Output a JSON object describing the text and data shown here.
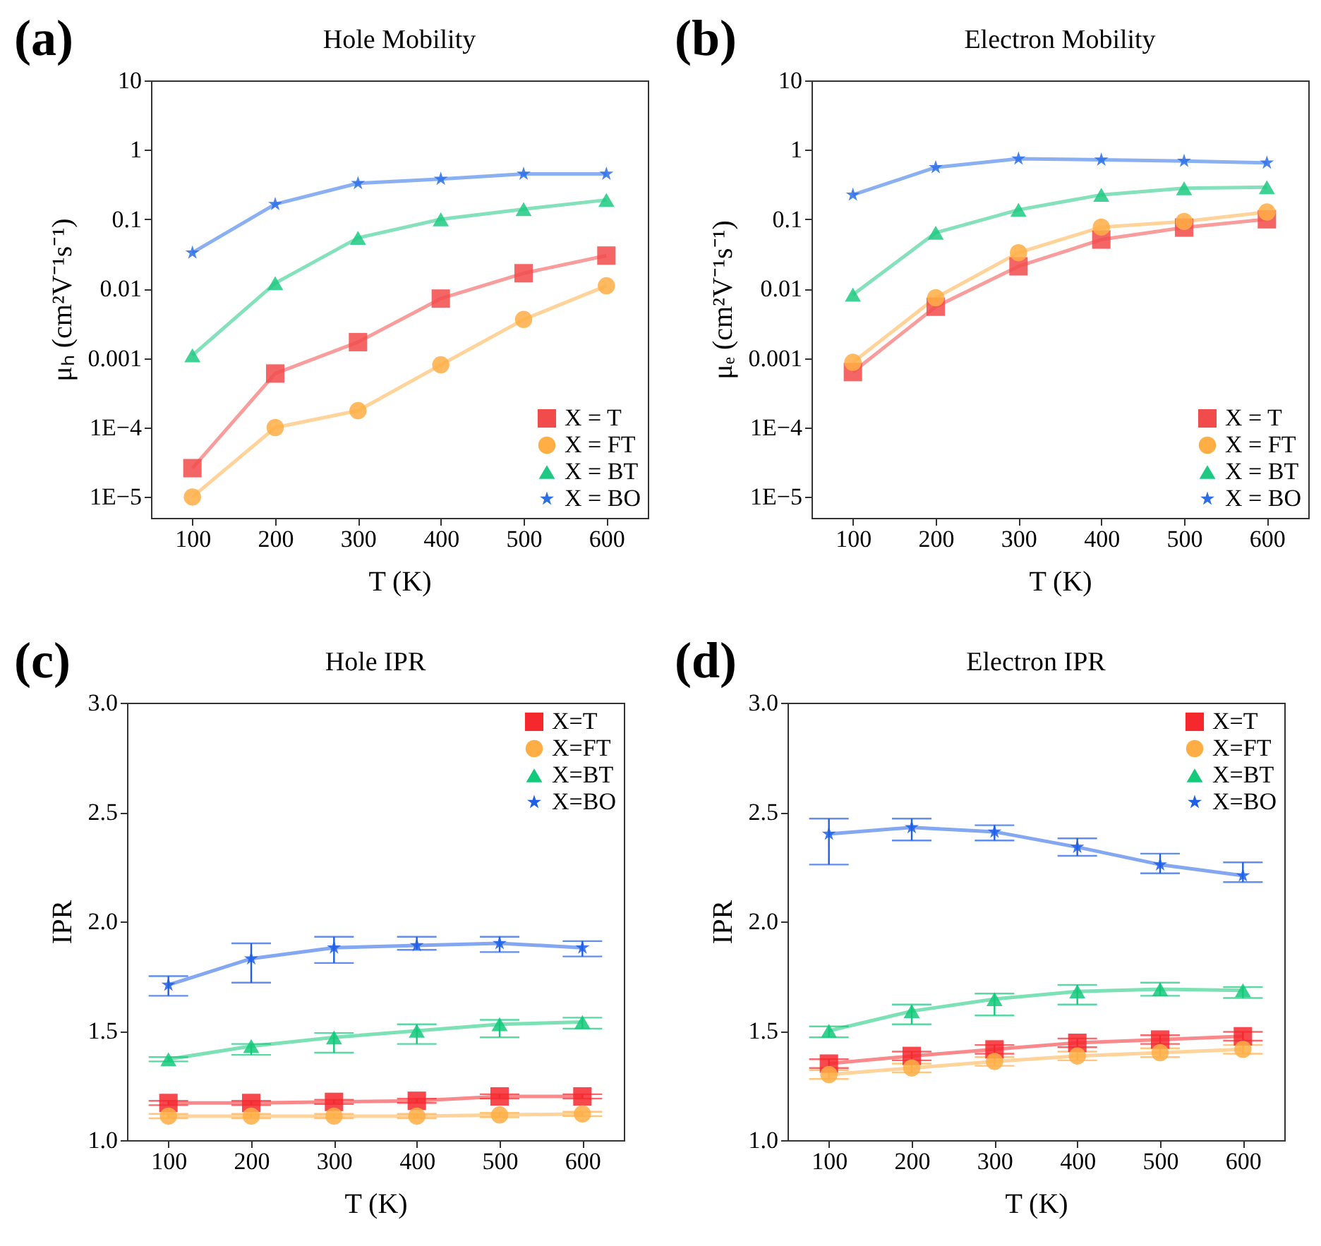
{
  "chart_data": [
    {
      "type": "line",
      "title": "Hole Mobility",
      "xlabel": "T (K)",
      "ylabel": "μₕ (cm²V⁻¹s⁻¹)",
      "annotations": [
        "(a)"
      ],
      "log": true,
      "legend": "bottom right",
      "x": [
        100,
        200,
        300,
        400,
        500,
        600
      ],
      "xlim": [
        50,
        650
      ],
      "xticks": [
        100,
        200,
        300,
        400,
        500,
        600
      ],
      "ylim": [
        5e-06,
        10
      ],
      "yticks": [
        {
          "value": 1e-05,
          "label": "1E−5"
        },
        {
          "value": 0.0001,
          "label": "1E−4"
        },
        0.001,
        0.01,
        0.1,
        1,
        10
      ],
      "series": [
        {
          "name": "X = T",
          "color": "#f24b4b",
          "marker": "square",
          "values": [
            2.6e-05,
            0.0006,
            0.0017,
            0.0072,
            0.0167,
            0.03
          ]
        },
        {
          "name": "X = FT",
          "color": "#ffae45",
          "marker": "circle",
          "values": [
            1e-05,
            0.0001,
            0.000175,
            0.0008,
            0.0036,
            0.011
          ]
        },
        {
          "name": "X = BT",
          "color": "#1fc983",
          "marker": "triangle",
          "values": [
            0.0011,
            0.012,
            0.054,
            0.1,
            0.14,
            0.19
          ]
        },
        {
          "name": "X = BO",
          "color": "#2a6fe8",
          "marker": "star",
          "values": [
            0.033,
            0.165,
            0.33,
            0.38,
            0.45,
            0.45
          ]
        }
      ]
    },
    {
      "type": "line",
      "title": "Electron Mobility",
      "xlabel": "T (K)",
      "ylabel": "μₑ (cm²V⁻¹s⁻¹)",
      "annotations": [
        "(b)"
      ],
      "log": true,
      "legend": "bottom right",
      "x": [
        100,
        200,
        300,
        400,
        500,
        600
      ],
      "xlim": [
        50,
        650
      ],
      "xticks": [
        100,
        200,
        300,
        400,
        500,
        600
      ],
      "ylim": [
        5e-06,
        10
      ],
      "yticks": [
        {
          "value": 1e-05,
          "label": "1E−5"
        },
        {
          "value": 0.0001,
          "label": "1E−4"
        },
        0.001,
        0.01,
        0.1,
        1,
        10
      ],
      "series": [
        {
          "name": "X = T",
          "color": "#f24b4b",
          "marker": "square",
          "values": [
            0.00063,
            0.0055,
            0.021,
            0.051,
            0.076,
            0.1
          ]
        },
        {
          "name": "X = FT",
          "color": "#ffae45",
          "marker": "circle",
          "values": [
            0.00087,
            0.0074,
            0.033,
            0.077,
            0.093,
            0.127
          ]
        },
        {
          "name": "X = BT",
          "color": "#1fc983",
          "marker": "triangle",
          "values": [
            0.0082,
            0.064,
            0.137,
            0.225,
            0.28,
            0.29
          ]
        },
        {
          "name": "X = BO",
          "color": "#2a6fe8",
          "marker": "star",
          "values": [
            0.225,
            0.56,
            0.745,
            0.72,
            0.69,
            0.65
          ]
        }
      ]
    },
    {
      "type": "line",
      "title": "Hole IPR",
      "xlabel": "T (K)",
      "ylabel": "IPR",
      "annotations": [
        "(c)"
      ],
      "legend": "top right",
      "x": [
        100,
        200,
        300,
        400,
        500,
        600
      ],
      "xlim": [
        50,
        650
      ],
      "xticks": [
        100,
        200,
        300,
        400,
        500,
        600
      ],
      "ylim": [
        1,
        3
      ],
      "yticks": [
        {
          "value": 1,
          "label": "1.0"
        },
        {
          "value": 1.5,
          "label": "1.5"
        },
        {
          "value": 2,
          "label": "2.0"
        },
        {
          "value": 2.5,
          "label": "2.5"
        },
        {
          "value": 3,
          "label": "3.0"
        }
      ],
      "series": [
        {
          "name": "X=T",
          "color": "#f5282e",
          "marker": "square",
          "values": [
            1.17,
            1.17,
            1.175,
            1.18,
            1.2,
            1.2
          ],
          "errors": [
            0.01,
            0.01,
            0.01,
            0.01,
            0.01,
            0.01
          ]
        },
        {
          "name": "X=FT",
          "color": "#ffae45",
          "marker": "circle",
          "values": [
            1.11,
            1.11,
            1.11,
            1.11,
            1.115,
            1.12
          ],
          "errors": [
            0.01,
            0.01,
            0.01,
            0.01,
            0.01,
            0.01
          ]
        },
        {
          "name": "X=BT",
          "color": "#13c97a",
          "marker": "triangle",
          "values": [
            1.37,
            1.43,
            1.47,
            1.5,
            1.53,
            1.54
          ],
          "errors": [
            [
              1.36,
              1.38
            ],
            [
              1.39,
              1.44
            ],
            [
              1.4,
              1.49
            ],
            [
              1.44,
              1.53
            ],
            [
              1.47,
              1.55
            ],
            [
              1.51,
              1.56
            ]
          ]
        },
        {
          "name": "X=BO",
          "color": "#1f5fe6",
          "marker": "star",
          "values": [
            1.71,
            1.83,
            1.88,
            1.89,
            1.9,
            1.88
          ],
          "errors": [
            [
              1.66,
              1.75
            ],
            [
              1.72,
              1.9
            ],
            [
              1.81,
              1.93
            ],
            [
              1.87,
              1.93
            ],
            [
              1.86,
              1.93
            ],
            [
              1.84,
              1.91
            ]
          ]
        }
      ]
    },
    {
      "type": "line",
      "title": "Electron IPR",
      "xlabel": "T (K)",
      "ylabel": "IPR",
      "annotations": [
        "(d)"
      ],
      "legend": "top right",
      "x": [
        100,
        200,
        300,
        400,
        500,
        600
      ],
      "xlim": [
        50,
        650
      ],
      "xticks": [
        100,
        200,
        300,
        400,
        500,
        600
      ],
      "ylim": [
        1,
        3
      ],
      "yticks": [
        {
          "value": 1,
          "label": "1.0"
        },
        {
          "value": 1.5,
          "label": "1.5"
        },
        {
          "value": 2,
          "label": "2.0"
        },
        {
          "value": 2.5,
          "label": "2.5"
        },
        {
          "value": 3,
          "label": "3.0"
        }
      ],
      "series": [
        {
          "name": "X=T",
          "color": "#f5282e",
          "marker": "square",
          "values": [
            1.35,
            1.385,
            1.415,
            1.445,
            1.46,
            1.475
          ],
          "errors": [
            0.02,
            0.02,
            0.02,
            0.02,
            0.02,
            0.02
          ]
        },
        {
          "name": "X=FT",
          "color": "#ffae45",
          "marker": "circle",
          "values": [
            1.3,
            1.33,
            1.36,
            1.385,
            1.4,
            1.415
          ],
          "errors": [
            0.02,
            0.02,
            0.02,
            0.02,
            0.02,
            0.02
          ]
        },
        {
          "name": "X=BT",
          "color": "#13c97a",
          "marker": "triangle",
          "values": [
            1.5,
            1.59,
            1.645,
            1.68,
            1.69,
            1.685
          ],
          "errors": [
            [
              1.47,
              1.52
            ],
            [
              1.53,
              1.62
            ],
            [
              1.57,
              1.67
            ],
            [
              1.62,
              1.71
            ],
            [
              1.66,
              1.72
            ],
            [
              1.65,
              1.7
            ]
          ]
        },
        {
          "name": "X=BO",
          "color": "#1f5fe6",
          "marker": "star",
          "values": [
            2.4,
            2.43,
            2.41,
            2.34,
            2.26,
            2.21
          ],
          "errors": [
            [
              2.26,
              2.47
            ],
            [
              2.37,
              2.47
            ],
            [
              2.37,
              2.44
            ],
            [
              2.3,
              2.38
            ],
            [
              2.22,
              2.31
            ],
            [
              2.18,
              2.27
            ]
          ]
        }
      ]
    }
  ]
}
